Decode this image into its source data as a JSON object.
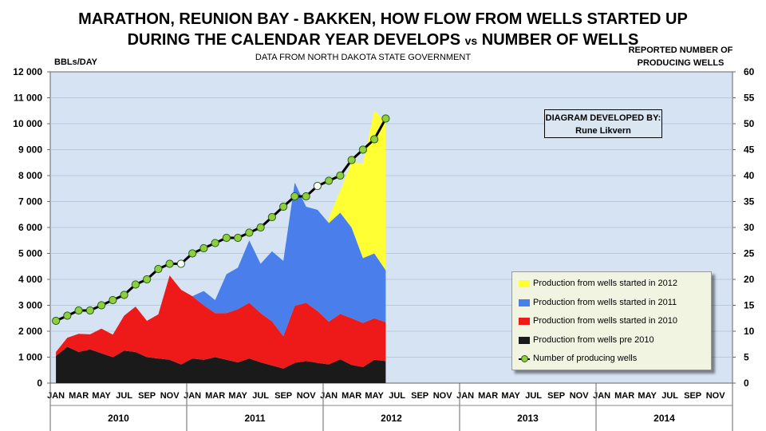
{
  "title_line1": "MARATHON, REUNION BAY - BAKKEN, HOW FLOW  FROM WELLS STARTED UP",
  "title_line2_a": "DURING THE CALENDAR YEAR DEVELOPS",
  "title_line2_vs": "vs",
  "title_line2_b": "NUMBER OF WELLS",
  "subtitle": "DATA FROM NORTH DAKOTA STATE GOVERNMENT",
  "credit": {
    "line1": "DIAGRAM DEVELOPED BY:",
    "line2": "Rune Likvern"
  },
  "legend": {
    "items": [
      {
        "label": "Production from wells started in 2012",
        "color": "#ffff33"
      },
      {
        "label": "Production from wells started in 2011",
        "color": "#4a7eea"
      },
      {
        "label": "Production from wells started in 2010",
        "color": "#ee1a1a"
      },
      {
        "label": "Production from wells pre 2010",
        "color": "#1a1a1a"
      },
      {
        "label": "Number of producing wells"
      }
    ]
  },
  "chart_data": {
    "type": "area",
    "ylabel": "BBLs/DAY",
    "y2label_line1": "REPORTED NUMBER OF",
    "y2label_line2": "PRODUCING WELLS",
    "ylim": [
      0,
      12000
    ],
    "y2lim": [
      0,
      60
    ],
    "yticks": [
      "0",
      "1 000",
      "2 000",
      "3 000",
      "4 000",
      "5 000",
      "6 000",
      "7 000",
      "8 000",
      "9 000",
      "10 000",
      "11 000",
      "12 000"
    ],
    "y2ticks": [
      "0",
      "5",
      "10",
      "15",
      "20",
      "25",
      "30",
      "35",
      "40",
      "45",
      "50",
      "55",
      "60"
    ],
    "x_month_labels": [
      "JAN",
      "MAR",
      "MAY",
      "JUL",
      "SEP",
      "NOV"
    ],
    "years": [
      "2010",
      "2011",
      "2012",
      "2013",
      "2014"
    ],
    "plot_background": "#d6e3f2",
    "series": [
      {
        "name": "Production from wells pre 2010",
        "color": "#1a1a1a",
        "start": 0,
        "values": [
          1050,
          1400,
          1200,
          1300,
          1150,
          1000,
          1250,
          1200,
          1000,
          950,
          900,
          720,
          950,
          900,
          1000,
          900,
          800,
          950,
          800,
          680,
          560,
          780,
          850,
          780,
          720,
          920,
          700,
          620,
          900,
          850
        ]
      },
      {
        "name": "Production from wells started in 2010",
        "color": "#ee1a1a",
        "start": 0,
        "values": [
          150,
          350,
          700,
          580,
          950,
          870,
          1350,
          1750,
          1400,
          1700,
          3250,
          2880,
          2400,
          2100,
          1700,
          1800,
          2050,
          2150,
          1900,
          1700,
          1250,
          2200,
          2250,
          2000,
          1650,
          1750,
          1800,
          1700,
          1600,
          1500
        ]
      },
      {
        "name": "Production from wells started in 2011",
        "color": "#4a7eea",
        "start": 12,
        "values": [
          0,
          550,
          500,
          1500,
          1600,
          2400,
          1900,
          2700,
          2900,
          4750,
          3700,
          3900,
          3800,
          3900,
          3500,
          2500,
          2500,
          2000
        ]
      },
      {
        "name": "Production from wells started in 2012",
        "color": "#ffff33",
        "start": 24,
        "values": [
          200,
          850,
          2500,
          3650,
          5500,
          5700
        ]
      },
      {
        "name": "Number of producing wells",
        "axis": "right",
        "start": 0,
        "values": [
          12,
          13,
          14,
          14,
          15,
          16,
          17,
          19,
          20,
          22,
          23,
          23,
          25,
          26,
          27,
          28,
          28,
          29,
          30,
          32,
          34,
          36,
          36,
          38,
          39,
          40,
          43,
          45,
          47,
          51
        ]
      }
    ]
  }
}
